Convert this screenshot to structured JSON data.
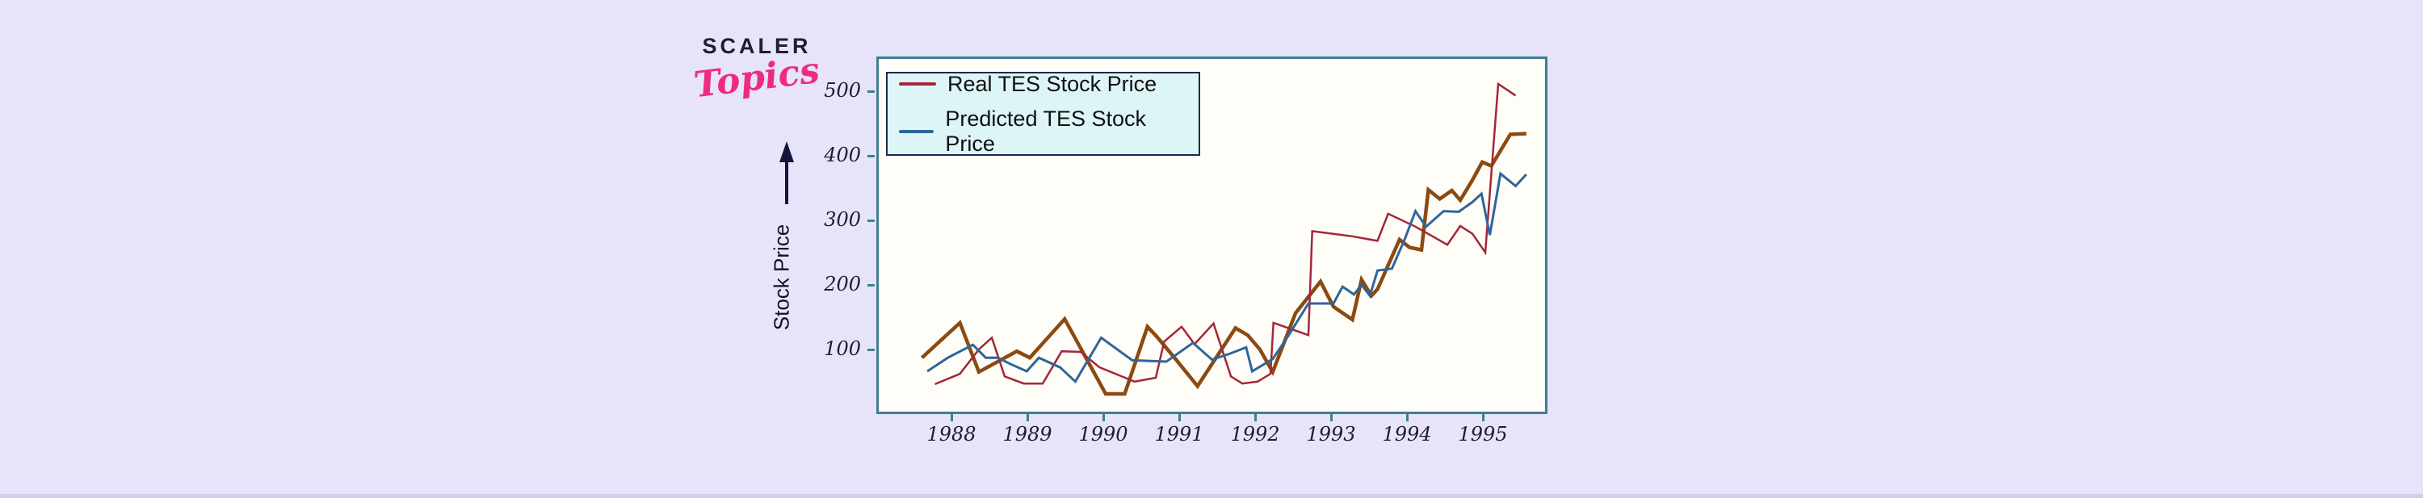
{
  "page": {
    "background": "#e7e4fa",
    "bottom_bar_color": "#d3ccf0"
  },
  "logo": {
    "primary": "SCALER",
    "secondary": "Topics",
    "primary_color": "#1d1d33",
    "secondary_color": "#ee2c7c"
  },
  "colors": {
    "page_bg": "#e7e4fa",
    "bottom_bar": "#d3ccf0",
    "plot_bg": "#fffdf7",
    "frame": "#3f7f90",
    "tick_text": "#1d1d30",
    "legend_bg": "#def5f8",
    "legend_border": "#1c2b4a",
    "real_line": "#a32638",
    "predicted_line": "#2f659b",
    "brown_line": "#8a4a12",
    "logo_navy": "#1d1d33",
    "logo_pink": "#ee2c7c",
    "arrow": "#14143c"
  },
  "chart_data": {
    "type": "line",
    "title": "",
    "xlabel": "",
    "ylabel": "Stock Price",
    "x_ticks": [
      1988,
      1989,
      1990,
      1991,
      1992,
      1993,
      1994,
      1995
    ],
    "y_ticks": [
      100,
      200,
      300,
      400,
      500
    ],
    "x_range": [
      1987.05,
      1995.96
    ],
    "y_range": [
      0,
      554
    ],
    "grid": false,
    "legend": {
      "position": "upper-left",
      "items": [
        {
          "label": "Real TES Stock Price",
          "color": "#a32638"
        },
        {
          "label": "Predicted TES Stock Price",
          "color": "#2f659b"
        }
      ]
    },
    "series": [
      {
        "legend_label": null,
        "color": "#8a4a12",
        "line_width": 4.5,
        "points": [
          [
            1987.58,
            91
          ],
          [
            1988.08,
            145
          ],
          [
            1988.33,
            69
          ],
          [
            1988.83,
            101
          ],
          [
            1989.0,
            91
          ],
          [
            1989.46,
            151
          ],
          [
            1990.0,
            35
          ],
          [
            1990.25,
            35
          ],
          [
            1990.55,
            139
          ],
          [
            1990.67,
            124
          ],
          [
            1990.92,
            89
          ],
          [
            1991.21,
            47
          ],
          [
            1991.71,
            137
          ],
          [
            1991.87,
            126
          ],
          [
            1992.03,
            104
          ],
          [
            1992.2,
            69
          ],
          [
            1992.5,
            160
          ],
          [
            1992.83,
            209
          ],
          [
            1993.0,
            170
          ],
          [
            1993.25,
            150
          ],
          [
            1993.37,
            212
          ],
          [
            1993.5,
            187
          ],
          [
            1993.58,
            197
          ],
          [
            1993.87,
            274
          ],
          [
            1994.0,
            262
          ],
          [
            1994.16,
            258
          ],
          [
            1994.25,
            351
          ],
          [
            1994.4,
            337
          ],
          [
            1994.56,
            350
          ],
          [
            1994.67,
            335
          ],
          [
            1994.83,
            366
          ],
          [
            1994.96,
            394
          ],
          [
            1995.08,
            388
          ],
          [
            1995.33,
            437
          ],
          [
            1995.54,
            438
          ]
        ]
      },
      {
        "legend_label": "Real TES Stock Price",
        "color": "#a32638",
        "line_width": 2.5,
        "points": [
          [
            1987.75,
            50
          ],
          [
            1988.08,
            66
          ],
          [
            1988.33,
            104
          ],
          [
            1988.5,
            122
          ],
          [
            1988.67,
            62
          ],
          [
            1988.92,
            51
          ],
          [
            1989.17,
            51
          ],
          [
            1989.42,
            101
          ],
          [
            1989.67,
            100
          ],
          [
            1989.92,
            76
          ],
          [
            1990.38,
            54
          ],
          [
            1990.66,
            60
          ],
          [
            1990.77,
            116
          ],
          [
            1991.0,
            139
          ],
          [
            1991.17,
            112
          ],
          [
            1991.42,
            144
          ],
          [
            1991.65,
            62
          ],
          [
            1991.8,
            51
          ],
          [
            1992.0,
            54
          ],
          [
            1992.17,
            66
          ],
          [
            1992.21,
            145
          ],
          [
            1992.67,
            126
          ],
          [
            1992.72,
            287
          ],
          [
            1993.25,
            279
          ],
          [
            1993.58,
            272
          ],
          [
            1993.72,
            314
          ],
          [
            1994.08,
            294
          ],
          [
            1994.5,
            266
          ],
          [
            1994.67,
            295
          ],
          [
            1994.83,
            283
          ],
          [
            1995.0,
            254
          ],
          [
            1995.17,
            515
          ],
          [
            1995.4,
            497
          ]
        ]
      },
      {
        "legend_label": "Predicted TES Stock Price",
        "color": "#2f659b",
        "line_width": 3,
        "points": [
          [
            1987.65,
            70
          ],
          [
            1987.92,
            91
          ],
          [
            1988.25,
            111
          ],
          [
            1988.42,
            91
          ],
          [
            1988.58,
            91
          ],
          [
            1988.75,
            81
          ],
          [
            1988.96,
            70
          ],
          [
            1989.12,
            91
          ],
          [
            1989.4,
            76
          ],
          [
            1989.6,
            54
          ],
          [
            1989.94,
            122
          ],
          [
            1990.35,
            87
          ],
          [
            1990.8,
            85
          ],
          [
            1991.15,
            114
          ],
          [
            1991.4,
            88
          ],
          [
            1991.63,
            97
          ],
          [
            1991.85,
            107
          ],
          [
            1991.93,
            70
          ],
          [
            1992.2,
            89
          ],
          [
            1992.4,
            124
          ],
          [
            1992.67,
            175
          ],
          [
            1993.0,
            175
          ],
          [
            1993.12,
            201
          ],
          [
            1993.27,
            189
          ],
          [
            1993.37,
            204
          ],
          [
            1993.48,
            187
          ],
          [
            1993.58,
            226
          ],
          [
            1993.77,
            229
          ],
          [
            1993.94,
            275
          ],
          [
            1994.08,
            318
          ],
          [
            1994.22,
            294
          ],
          [
            1994.45,
            318
          ],
          [
            1994.65,
            317
          ],
          [
            1994.83,
            332
          ],
          [
            1994.95,
            345
          ],
          [
            1995.06,
            281
          ],
          [
            1995.2,
            376
          ],
          [
            1995.4,
            357
          ],
          [
            1995.54,
            375
          ]
        ]
      }
    ]
  }
}
